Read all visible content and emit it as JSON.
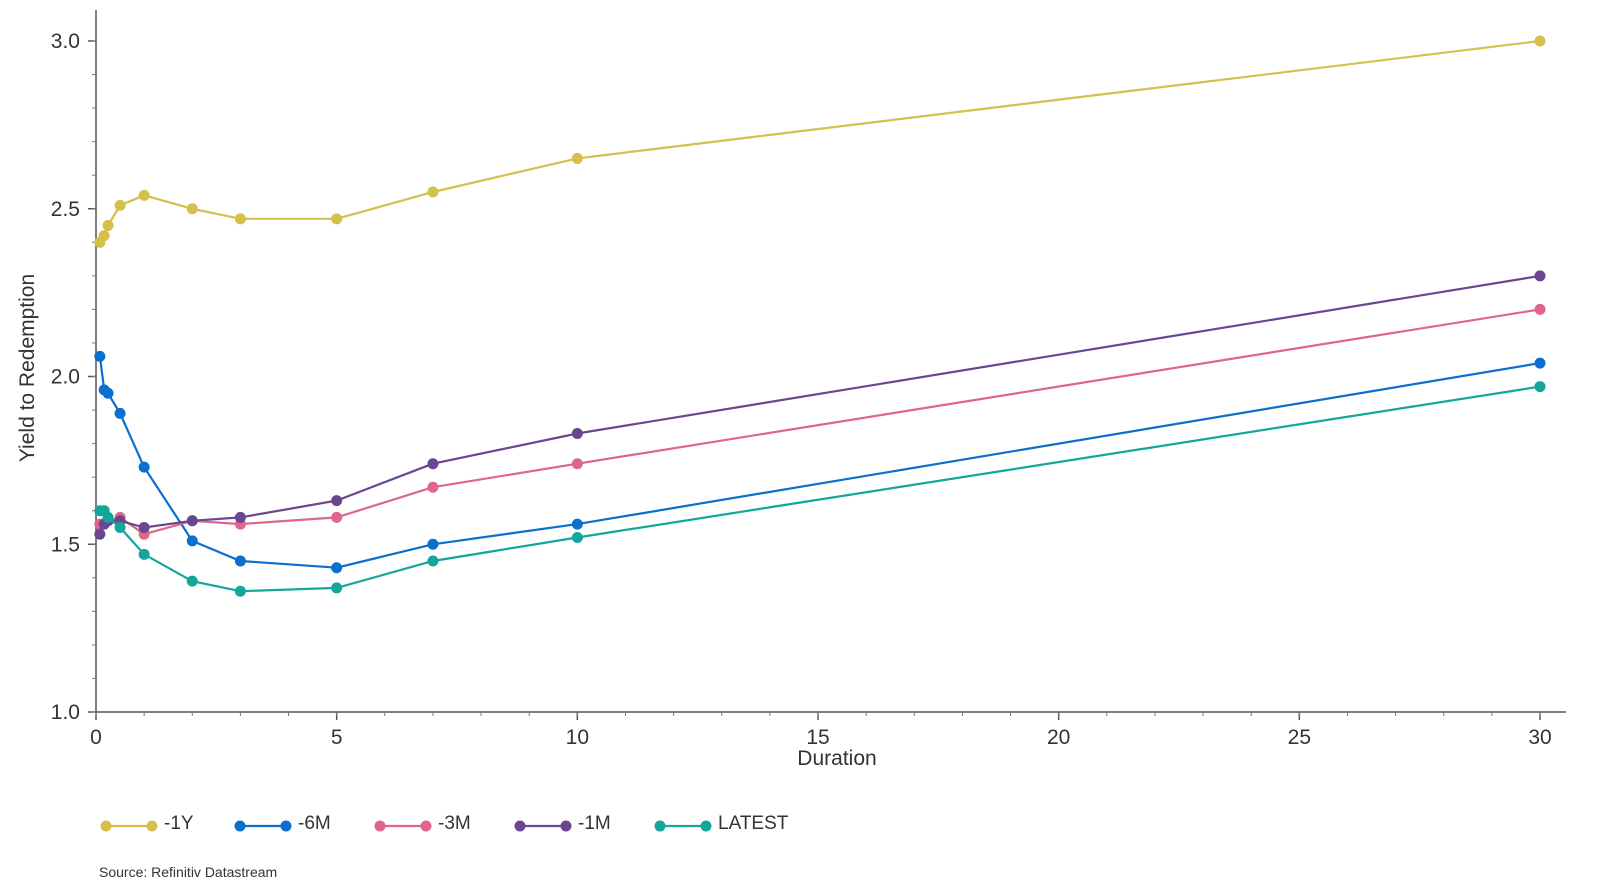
{
  "chart_data": {
    "type": "line",
    "title": "",
    "xlabel": "Duration",
    "ylabel": "Yield to Redemption",
    "xlim": [
      0,
      30.5
    ],
    "ylim": [
      1.0,
      3.1
    ],
    "xticks": [
      0,
      5,
      10,
      15,
      20,
      25,
      30
    ],
    "xtick_labels": [
      "0",
      "5",
      "10",
      "15",
      "20",
      "25",
      "30"
    ],
    "yticks": [
      1.0,
      1.5,
      2.0,
      2.5,
      3.0
    ],
    "ytick_labels": [
      "1.0",
      "1.5",
      "2.0",
      "2.5",
      "3.0"
    ],
    "grid": false,
    "legend_position": "bottom-left",
    "series": [
      {
        "name": "-1Y",
        "color": "#d4c04a",
        "x": [
          0.08,
          0.17,
          0.25,
          0.5,
          1,
          2,
          3,
          5,
          7,
          10,
          30
        ],
        "y": [
          2.4,
          2.42,
          2.45,
          2.51,
          2.54,
          2.5,
          2.47,
          2.47,
          2.55,
          2.65,
          3.0
        ]
      },
      {
        "name": "-6M",
        "color": "#0a6fce",
        "x": [
          0.08,
          0.17,
          0.25,
          0.5,
          1,
          2,
          3,
          5,
          7,
          10,
          30
        ],
        "y": [
          2.06,
          1.96,
          1.95,
          1.89,
          1.73,
          1.51,
          1.45,
          1.43,
          1.5,
          1.56,
          2.04
        ]
      },
      {
        "name": "-3M",
        "color": "#df6589",
        "x": [
          0.08,
          0.17,
          0.25,
          0.5,
          1,
          2,
          3,
          5,
          7,
          10,
          30
        ],
        "y": [
          1.56,
          1.56,
          1.57,
          1.58,
          1.53,
          1.57,
          1.56,
          1.58,
          1.67,
          1.74,
          2.2
        ]
      },
      {
        "name": "-1M",
        "color": "#6a4590",
        "x": [
          0.08,
          0.17,
          0.25,
          0.5,
          1,
          2,
          3,
          5,
          7,
          10,
          30
        ],
        "y": [
          1.53,
          1.56,
          1.57,
          1.57,
          1.55,
          1.57,
          1.58,
          1.63,
          1.74,
          1.83,
          2.3
        ]
      },
      {
        "name": "LATEST",
        "color": "#13a69a",
        "x": [
          0.08,
          0.17,
          0.25,
          0.5,
          1,
          2,
          3,
          5,
          7,
          10,
          30
        ],
        "y": [
          1.6,
          1.6,
          1.58,
          1.55,
          1.47,
          1.39,
          1.36,
          1.37,
          1.45,
          1.52,
          1.97
        ]
      }
    ]
  },
  "source": "Source: Refinitiv Datastream"
}
